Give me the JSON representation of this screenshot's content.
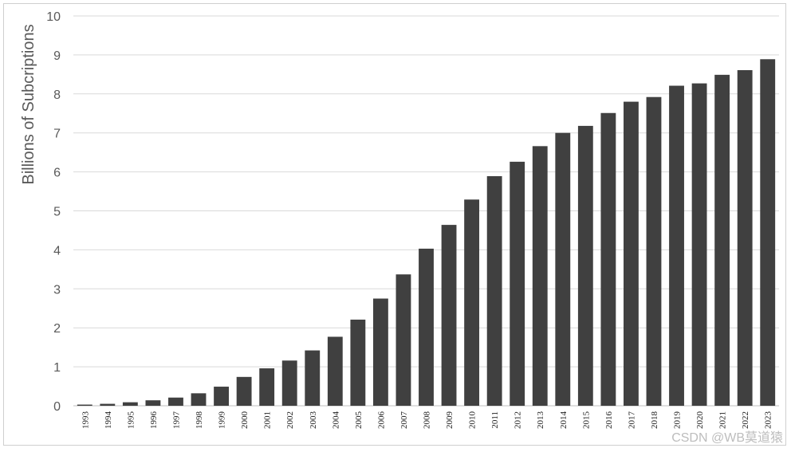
{
  "chart_data": {
    "type": "bar",
    "title": "",
    "xlabel": "",
    "ylabel": "Billions of Subcriptions",
    "ylim": [
      0,
      10
    ],
    "yticks": [
      0,
      1,
      2,
      3,
      4,
      5,
      6,
      7,
      8,
      9,
      10
    ],
    "grid": true,
    "bar_color": "#404040",
    "categories": [
      "1993",
      "1994",
      "1995",
      "1996",
      "1997",
      "1998",
      "1999",
      "2000",
      "2001",
      "2002",
      "2003",
      "2004",
      "2005",
      "2006",
      "2007",
      "2008",
      "2009",
      "2010",
      "2011",
      "2012",
      "2013",
      "2014",
      "2015",
      "2016",
      "2017",
      "2018",
      "2019",
      "2020",
      "2021",
      "2022",
      "2023"
    ],
    "values": [
      0.03,
      0.05,
      0.09,
      0.14,
      0.21,
      0.32,
      0.49,
      0.74,
      0.96,
      1.16,
      1.42,
      1.77,
      2.21,
      2.75,
      3.37,
      4.03,
      4.64,
      5.29,
      5.89,
      6.26,
      6.66,
      7.0,
      7.18,
      7.51,
      7.8,
      7.92,
      8.21,
      8.27,
      8.49,
      8.61,
      8.89
    ]
  },
  "watermark": "CSDN @WB莫道猿"
}
